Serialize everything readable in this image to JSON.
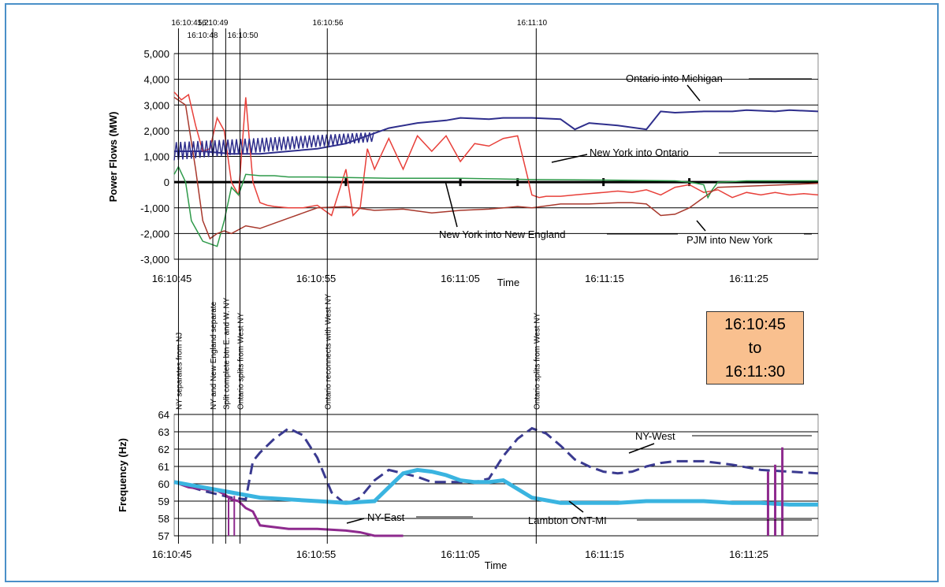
{
  "time_box": [
    "16:10:45",
    "to",
    "16:11:30"
  ],
  "event_times": [
    "16:10:45,2",
    "16:10:48",
    "16:10:49",
    "16:10:50",
    "16:10:56",
    "16:11:10"
  ],
  "event_notes": [
    "NY separates from NJ",
    "NY and New England separate",
    "Split complete btn E. and W. NY",
    "Ontario splits from West NY",
    "Ontario reconnects with West NY",
    "Ontario splits from West NY"
  ],
  "colors": {
    "Ontario into Michigan": "#2e2e8c",
    "New York into Ontario": "#e8403a",
    "New York into New England": "#2e9a4a",
    "PJM into New York": "#a8382c",
    "NY-West": "#3a3a90",
    "NY-East": "#8e2a8e",
    "Lambton ONT-MI": "#3ab4e0",
    "frame": "#4a90c8",
    "time_box": "#f9c08f"
  },
  "chart_data": [
    {
      "type": "line",
      "ylabel": "Power Flows (MW)",
      "xlabel": "Time",
      "xticks": [
        "16:10:45",
        "16:10:55",
        "16:11:05",
        "16:11:15",
        "16:11:25"
      ],
      "yticks": [
        "5,000",
        "4,000",
        "3,000",
        "2,000",
        "1,000",
        "0",
        "-1,000",
        "-2,000",
        "-3,000"
      ],
      "xlim": [
        0,
        45
      ],
      "ylim": [
        -3000,
        5000
      ],
      "series": [
        {
          "name": "Ontario into Michigan",
          "x": [
            0,
            2,
            4,
            6,
            8,
            10,
            12,
            14,
            15,
            17,
            19,
            20,
            22,
            23,
            25,
            27,
            28,
            29,
            31,
            33,
            34,
            35,
            37,
            39,
            40,
            42,
            43,
            45
          ],
          "y": [
            1200,
            1200,
            1100,
            1100,
            1200,
            1300,
            1500,
            1900,
            2100,
            2300,
            2400,
            2500,
            2450,
            2500,
            2500,
            2450,
            2050,
            2300,
            2200,
            2050,
            2750,
            2700,
            2750,
            2750,
            2800,
            2750,
            2800,
            2750
          ]
        },
        {
          "name": "New York into Ontario",
          "x": [
            0,
            0.5,
            1,
            1.5,
            2,
            2.5,
            3,
            3.5,
            4,
            4.5,
            5,
            5.5,
            6,
            6.5,
            7,
            8,
            9,
            10,
            11,
            12,
            12.5,
            13,
            13.5,
            14,
            15,
            16,
            17,
            18,
            19,
            20,
            21,
            22,
            23,
            24,
            25,
            25.5,
            26,
            27,
            28,
            29,
            30,
            31,
            32,
            33,
            34,
            35,
            36,
            37,
            38,
            39,
            40,
            41,
            42,
            43,
            44,
            45
          ],
          "y": [
            3500,
            3200,
            3400,
            2200,
            1200,
            1300,
            2500,
            2000,
            0,
            -500,
            3300,
            0,
            -800,
            -900,
            -950,
            -1000,
            -1000,
            -900,
            -1300,
            500,
            -1300,
            -1000,
            1300,
            500,
            1700,
            500,
            1800,
            1200,
            1800,
            800,
            1500,
            1400,
            1700,
            1800,
            -500,
            -600,
            -550,
            -550,
            -500,
            -450,
            -400,
            -350,
            -400,
            -300,
            -500,
            -200,
            -100,
            -400,
            -300,
            -600,
            -400,
            -500,
            -400,
            -500,
            -450,
            -500
          ]
        },
        {
          "name": "New York into New England",
          "x": [
            0,
            0.3,
            0.8,
            1.2,
            2,
            3,
            3.5,
            4,
            4.5,
            5,
            6,
            7,
            8,
            10,
            15,
            20,
            25,
            30,
            35,
            36,
            37,
            37.3,
            37.6,
            38,
            39,
            40,
            45
          ],
          "y": [
            300,
            600,
            0,
            -1500,
            -2300,
            -2500,
            -1500,
            -200,
            -500,
            300,
            250,
            250,
            200,
            200,
            150,
            150,
            100,
            80,
            50,
            0,
            -100,
            -600,
            -300,
            0,
            20,
            50,
            50
          ]
        },
        {
          "name": "PJM into New York",
          "x": [
            0,
            0.8,
            1.5,
            2,
            2.5,
            3,
            3.5,
            4,
            5,
            6,
            8,
            10,
            12,
            14,
            16,
            18,
            20,
            22,
            24,
            25,
            27,
            29,
            31,
            32,
            33,
            34,
            35,
            36,
            37,
            37.5,
            38,
            45
          ],
          "y": [
            3300,
            3000,
            500,
            -1500,
            -2200,
            -2000,
            -1900,
            -2000,
            -1700,
            -1800,
            -1400,
            -1000,
            -950,
            -1100,
            -1050,
            -1200,
            -1100,
            -1050,
            -950,
            -1000,
            -850,
            -850,
            -800,
            -800,
            -850,
            -1300,
            -1250,
            -1000,
            -600,
            -400,
            -200,
            -50
          ]
        }
      ],
      "annotations": [
        "Ontario into Michigan",
        "New York into Ontario",
        "New York into New England",
        "PJM into New York"
      ]
    },
    {
      "type": "line",
      "ylabel": "Frequency (Hz)",
      "xlabel": "Time",
      "xticks": [
        "16:10:45",
        "16:10:55",
        "16:11:05",
        "16:11:15",
        "16:11:25"
      ],
      "yticks": [
        "64",
        "63",
        "62",
        "61",
        "60",
        "59",
        "58",
        "57"
      ],
      "xlim": [
        0,
        45
      ],
      "ylim": [
        57,
        64
      ],
      "series": [
        {
          "name": "NY-West",
          "x": [
            0,
            2,
            4,
            5,
            5.5,
            6,
            7,
            8,
            9,
            10,
            11,
            12,
            13,
            14,
            15,
            16,
            17,
            18,
            19,
            20,
            21,
            22,
            23,
            24,
            25,
            26,
            27,
            28,
            29,
            30,
            31,
            32,
            33,
            34,
            35,
            37,
            39,
            41,
            43,
            45
          ],
          "y": [
            60.1,
            59.6,
            59.2,
            59.1,
            61.3,
            61.8,
            62.6,
            63.2,
            62.8,
            61.5,
            59.5,
            58.8,
            59.2,
            60.2,
            60.8,
            60.6,
            60.4,
            60.1,
            60.1,
            60.1,
            60.1,
            60.3,
            61.6,
            62.6,
            63.2,
            62.9,
            62.2,
            61.4,
            61,
            60.7,
            60.6,
            60.7,
            61,
            61.2,
            61.3,
            61.3,
            61.1,
            60.8,
            60.7,
            60.6
          ]
        },
        {
          "name": "NY-East",
          "x": [
            0,
            1,
            2,
            3,
            3.5,
            4,
            4.5,
            5,
            5.5,
            6,
            8,
            10,
            12,
            13,
            14,
            15,
            16
          ],
          "y": [
            60.1,
            59.8,
            59.7,
            59.6,
            59.4,
            59.1,
            59.0,
            58.6,
            58.4,
            57.6,
            57.4,
            57.4,
            57.3,
            57.2,
            57.0,
            57.0,
            57.0
          ]
        },
        {
          "name": "Lambton ONT-MI",
          "x": [
            0,
            2,
            4,
            6,
            8,
            10,
            12,
            14,
            15,
            16,
            17,
            18,
            19,
            20,
            21,
            22,
            23,
            25,
            27,
            29,
            31,
            33,
            35,
            37,
            39,
            41,
            43,
            45
          ],
          "y": [
            60.1,
            59.8,
            59.5,
            59.2,
            59.1,
            59,
            58.9,
            59,
            59.8,
            60.6,
            60.8,
            60.7,
            60.5,
            60.2,
            60.1,
            60.1,
            60.2,
            59.2,
            58.9,
            58.9,
            58.9,
            59,
            59,
            59,
            58.9,
            58.9,
            58.8,
            58.8
          ]
        }
      ],
      "annotations": [
        "NY-West",
        "NY-East",
        "Lambton ONT-MI"
      ]
    }
  ]
}
